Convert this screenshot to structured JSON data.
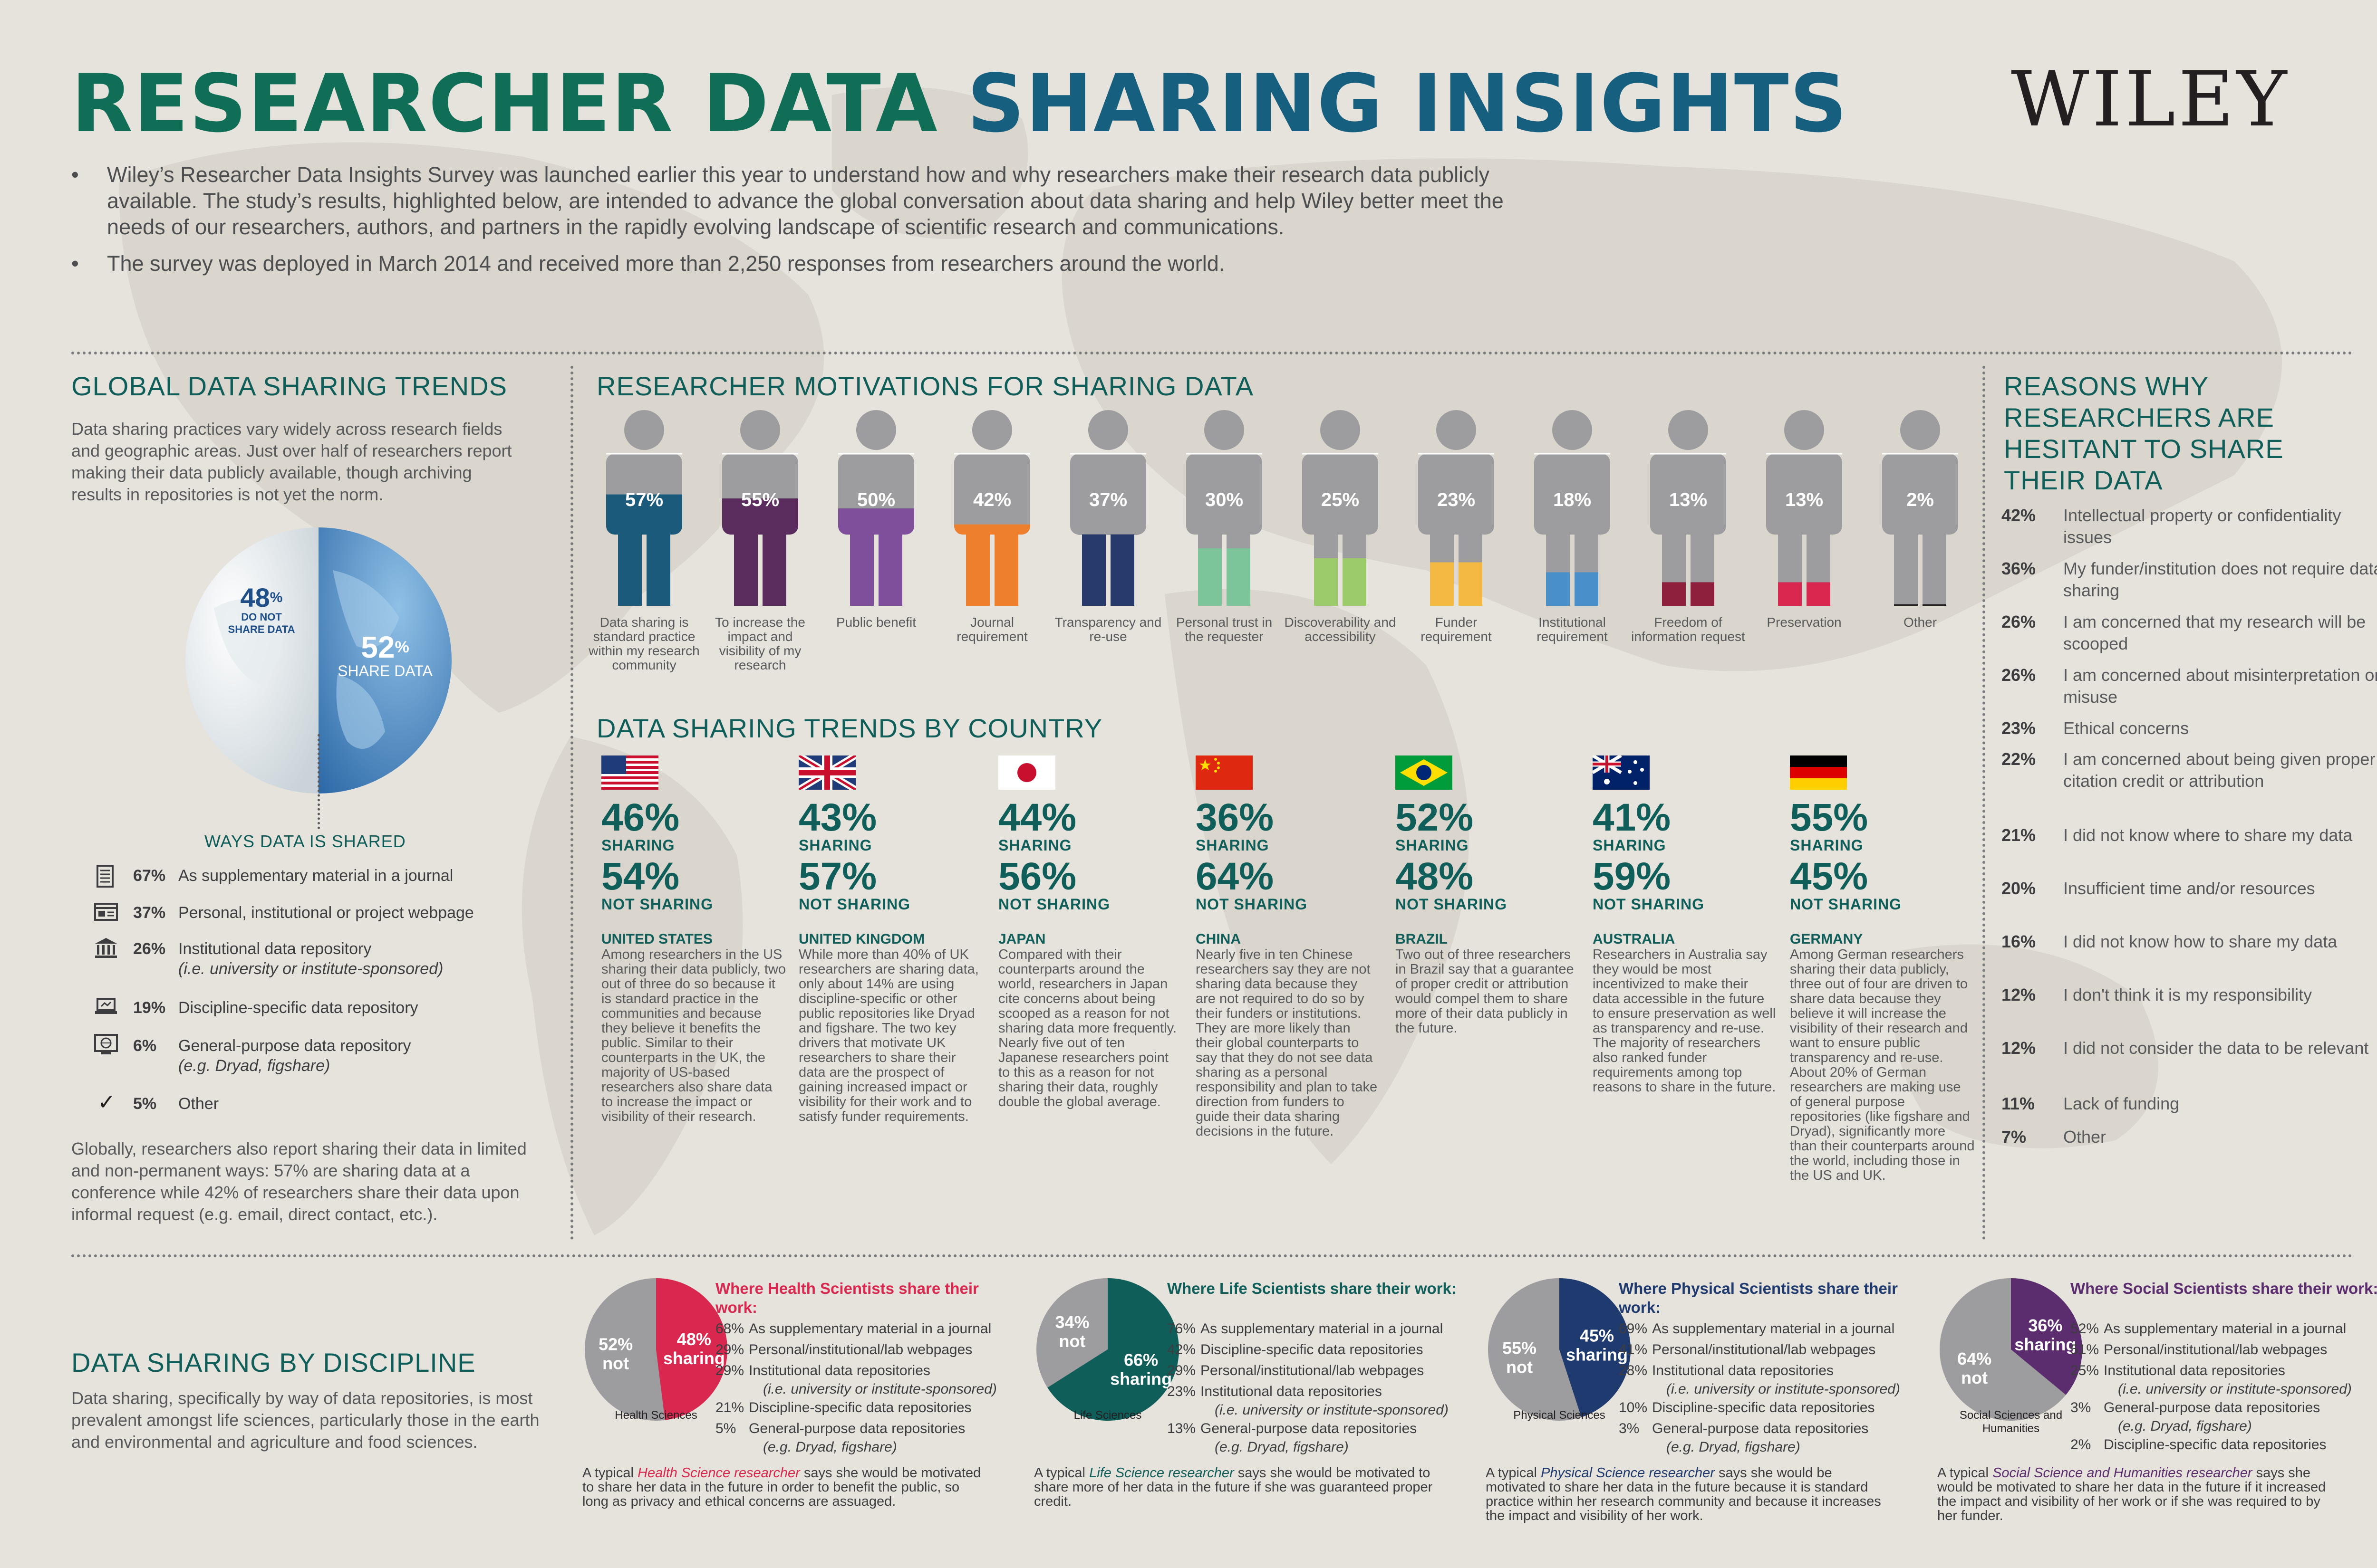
{
  "header": {
    "title_part1": "RESEARCHER DATA ",
    "title_part2": "SHARING INSIGHTS",
    "brand": "WILEY",
    "bullets": [
      "Wiley’s Researcher Data Insights Survey was launched earlier this year to understand how and why researchers make their research data publicly available. The study’s results, highlighted below, are intended to advance the global conversation about data sharing and help Wiley better meet the needs of our researchers, authors, and partners in the rapidly evolving landscape of scientific research and communications.",
      "The survey was deployed in March 2014 and received more than 2,250 responses from researchers around the world."
    ],
    "bullet_mark": "•"
  },
  "global": {
    "heading": "GLOBAL DATA SHARING TRENDS",
    "intro": "Data sharing practices vary widely across research fields and geographic areas. Just over half of researchers report making their data publicly available, though archiving results in repositories is not yet the norm.",
    "do_not_pct": "48",
    "do_not_label1": "DO NOT",
    "do_not_label2": "SHARE DATA",
    "share_pct": "52",
    "share_label": "SHARE DATA",
    "pct_sign": "%",
    "ways_heading": "WAYS DATA IS SHARED",
    "ways": [
      {
        "pct": "67%",
        "text": "As supplementary material in a journal",
        "sub": "",
        "icon": "journal-icon"
      },
      {
        "pct": "37%",
        "text": "Personal, institutional or project webpage",
        "sub": "",
        "icon": "webpage-icon"
      },
      {
        "pct": "26%",
        "text": "Institutional data repository",
        "sub": "(i.e. university or institute-sponsored)",
        "icon": "institution-icon"
      },
      {
        "pct": "19%",
        "text": "Discipline-specific data repository",
        "sub": "",
        "icon": "laptop-icon"
      },
      {
        "pct": "6%",
        "text": "General-purpose data repository",
        "sub": "(e.g. Dryad, figshare)",
        "icon": "globe-screen-icon"
      },
      {
        "pct": "5%",
        "text": "Other",
        "sub": "",
        "icon": "check-icon"
      }
    ],
    "footer": "Globally, researchers also report sharing their data in limited and non-permanent ways: 57% are sharing data at a conference while 42% of researchers share their data upon informal request (e.g. email, direct contact, etc.)."
  },
  "motivations": {
    "heading": "RESEARCHER MOTIVATIONS FOR SHARING DATA",
    "items": [
      {
        "pct": "57%",
        "label": "Data sharing is standard practice within my research community",
        "color": "#1b5a7a"
      },
      {
        "pct": "55%",
        "label": "To increase the impact and visibility of my research",
        "color": "#5b2d5e"
      },
      {
        "pct": "50%",
        "label": "Public benefit",
        "color": "#7f4f9c"
      },
      {
        "pct": "42%",
        "label": "Journal requirement",
        "color": "#ee7f2d"
      },
      {
        "pct": "37%",
        "label": "Transparency and re-use",
        "color": "#283a6b"
      },
      {
        "pct": "30%",
        "label": "Personal trust in the requester",
        "color": "#7cc49a"
      },
      {
        "pct": "25%",
        "label": "Discoverability and accessibility",
        "color": "#9ccc6a"
      },
      {
        "pct": "23%",
        "label": "Funder requirement",
        "color": "#f4b942"
      },
      {
        "pct": "18%",
        "label": "Institutional requirement",
        "color": "#4a90c8"
      },
      {
        "pct": "13%",
        "label": "Freedom of information request",
        "color": "#8e1f3d"
      },
      {
        "pct": "13%",
        "label": "Preservation",
        "color": "#d8284f"
      },
      {
        "pct": "2%",
        "label": "Other",
        "color": "#231f20"
      }
    ]
  },
  "countries": {
    "heading": "DATA SHARING TRENDS BY COUNTRY",
    "sharing_label": "SHARING",
    "not_sharing_label": "NOT SHARING",
    "items": [
      {
        "share": "46%",
        "not": "54%",
        "name": "UNITED STATES",
        "flag": "us-flag-icon",
        "text": "Among researchers in the US sharing their data publicly, two out of three do so because it is standard practice in the communities and because they believe it benefits the public. Similar to their counterparts in the UK, the majority of US-based researchers also share data to increase the impact or visibility of their research."
      },
      {
        "share": "43%",
        "not": "57%",
        "name": "UNITED KINGDOM",
        "flag": "uk-flag-icon",
        "text": "While more than 40% of UK researchers are sharing data, only about 14% are using discipline-specific or other public repositories like Dryad and figshare. The two key drivers that motivate UK researchers to share their data are the prospect of gaining increased impact or visibility for their work and to satisfy funder requirements."
      },
      {
        "share": "44%",
        "not": "56%",
        "name": "JAPAN",
        "flag": "japan-flag-icon",
        "text": "Compared with their counterparts around the world, researchers in Japan cite concerns about being scooped as a reason for not sharing data more frequently. Nearly five out of ten Japanese researchers point to this as a reason for not sharing their data, roughly double the global average."
      },
      {
        "share": "36%",
        "not": "64%",
        "name": "CHINA",
        "flag": "china-flag-icon",
        "text": "Nearly five in ten Chinese researchers say they are not sharing data because they are not required to do so by their funders or institutions. They are more likely than their global counterparts to say that they do not see data sharing as a personal responsibility and plan to take direction from funders to guide their data sharing decisions in the future."
      },
      {
        "share": "52%",
        "not": "48%",
        "name": "BRAZIL",
        "flag": "brazil-flag-icon",
        "text": "Two out of three researchers in Brazil say that a guarantee of proper credit or attribution would compel them to share more of their data publicly in the future."
      },
      {
        "share": "41%",
        "not": "59%",
        "name": "AUSTRALIA",
        "flag": "australia-flag-icon",
        "text": "Researchers in Australia say they would be most incentivized to make their data accessible in the future to ensure preservation as well as transparency and re-use. The majority of researchers also ranked funder requirements among top reasons to share in the future."
      },
      {
        "share": "55%",
        "not": "45%",
        "name": "GERMANY",
        "flag": "germany-flag-icon",
        "text": "Among German researchers sharing their data publicly, three out of four are driven to share data because they believe it will increase the visibility of their research and want to ensure public transparency and re-use. About 20% of German researchers are making use of general purpose repositories (like figshare and Dryad), significantly more than their counterparts around the world, including those in the US and UK."
      }
    ]
  },
  "reasons": {
    "heading": "REASONS WHY RESEARCHERS ARE HESITANT TO SHARE THEIR DATA",
    "items": [
      {
        "pct": "42%",
        "text": "Intellectual property or confidentiality issues"
      },
      {
        "pct": "36%",
        "text": "My funder/institution does not require data sharing"
      },
      {
        "pct": "26%",
        "text": "I am concerned that my research will be scooped"
      },
      {
        "pct": "26%",
        "text": "I am concerned about misinterpretation or misuse"
      },
      {
        "pct": "23%",
        "text": "Ethical concerns"
      },
      {
        "pct": "22%",
        "text": "I am concerned about being given proper citation credit or attribution"
      },
      {
        "pct": "21%",
        "text": "I did not know where to share my data"
      },
      {
        "pct": "20%",
        "text": "Insufficient time and/or resources"
      },
      {
        "pct": "16%",
        "text": "I did not know how to share my data"
      },
      {
        "pct": "12%",
        "text": "I don't think it is my responsibility"
      },
      {
        "pct": "12%",
        "text": "I did not consider the data to be relevant"
      },
      {
        "pct": "11%",
        "text": "Lack of funding"
      },
      {
        "pct": "7%",
        "text": "Other"
      }
    ]
  },
  "discipline": {
    "heading": "DATA SHARING BY DISCIPLINE",
    "intro": "Data sharing, specifically by way of data repositories, is most prevalent amongst life sciences, particularly those in the earth and environmental and agriculture and food sciences.",
    "items": [
      {
        "name": "Health Sciences",
        "share": "48%",
        "not": "52%",
        "share_word": "sharing",
        "not_word": "not",
        "color": "#d8284f",
        "title": "Where Health Scientists share their work:",
        "list": [
          {
            "pct": "68%",
            "text": "As supplementary material in a journal",
            "sub": ""
          },
          {
            "pct": "29%",
            "text": "Personal/institutional/lab webpages",
            "sub": ""
          },
          {
            "pct": "29%",
            "text": "Institutional data repositories",
            "sub": "(i.e. university or institute-sponsored)"
          },
          {
            "pct": "21%",
            "text": "Discipline-specific data repositories",
            "sub": ""
          },
          {
            "pct": "5%",
            "text": "General-purpose data repositories",
            "sub": "(e.g. Dryad, figshare)"
          }
        ],
        "note_pre": "A typical ",
        "note_em": "Health Science researcher",
        "note_post": " says she would be motivated to share her data in the future in order to benefit the public, so long as privacy and ethical concerns are assuaged."
      },
      {
        "name": "Life Sciences",
        "share": "66%",
        "not": "34%",
        "share_word": "sharing",
        "not_word": "not",
        "color": "#0f5e5a",
        "title": "Where Life Scientists share their work:",
        "list": [
          {
            "pct": "76%",
            "text": "As supplementary material in a journal",
            "sub": ""
          },
          {
            "pct": "42%",
            "text": "Discipline-specific data repositories",
            "sub": ""
          },
          {
            "pct": "29%",
            "text": "Personal/institutional/lab webpages",
            "sub": ""
          },
          {
            "pct": "23%",
            "text": "Institutional data repositories",
            "sub": "(i.e. university or institute-sponsored)"
          },
          {
            "pct": "13%",
            "text": "General-purpose data repositories",
            "sub": "(e.g. Dryad, figshare)"
          }
        ],
        "note_pre": "A typical ",
        "note_em": "Life Science researcher",
        "note_post": " says she would be motivated to share more of her data in the future if she was guaranteed proper credit."
      },
      {
        "name": "Physical Sciences",
        "share": "45%",
        "not": "55%",
        "share_word": "sharing",
        "not_word": "not",
        "color": "#1e3a6e",
        "title": "Where Physical Scientists share their work:",
        "list": [
          {
            "pct": "69%",
            "text": "As supplementary material in a journal",
            "sub": ""
          },
          {
            "pct": "41%",
            "text": "Personal/institutional/lab webpages",
            "sub": ""
          },
          {
            "pct": "28%",
            "text": "Institutional data repositories",
            "sub": "(i.e. university or institute-sponsored)"
          },
          {
            "pct": "10%",
            "text": "Discipline-specific data repositories",
            "sub": ""
          },
          {
            "pct": "3%",
            "text": "General-purpose data repositories",
            "sub": "(e.g. Dryad, figshare)"
          }
        ],
        "note_pre": "A typical ",
        "note_em": "Physical Science researcher",
        "note_post": " says she would be motivated to share her data in the future because it is standard practice within her research community and because it increases the impact and visibility of her work."
      },
      {
        "name": "Social Sciences and Humanities",
        "share": "36%",
        "not": "64%",
        "share_word": "sharing",
        "not_word": "not",
        "color": "#5b2d6e",
        "title": "Where Social Scientists share their work:",
        "list": [
          {
            "pct": "52%",
            "text": "As supplementary material in a journal",
            "sub": ""
          },
          {
            "pct": "51%",
            "text": "Personal/institutional/lab webpages",
            "sub": ""
          },
          {
            "pct": "25%",
            "text": "Institutional data repositories",
            "sub": "(i.e. university or institute-sponsored)"
          },
          {
            "pct": "3%",
            "text": "General-purpose data repositories",
            "sub": "(e.g. Dryad, figshare)"
          },
          {
            "pct": "2%",
            "text": "Discipline-specific data repositories",
            "sub": ""
          }
        ],
        "note_pre": "A typical ",
        "note_em": "Social Science and Humanities researcher",
        "note_post": " says she would be motivated to share her data in the future if it increased the impact and visibility of her work or if she was required to by her funder."
      }
    ]
  },
  "chart_data": [
    {
      "type": "pie",
      "title": "",
      "categories": [
        "DO NOT SHARE DATA",
        "SHARE DATA"
      ],
      "values": [
        48,
        52
      ]
    },
    {
      "type": "bar",
      "title": "RESEARCHER MOTIVATIONS FOR SHARING DATA",
      "categories": [
        "Data sharing is standard practice within my research community",
        "To increase the impact and visibility of my research",
        "Public benefit",
        "Journal requirement",
        "Transparency and re-use",
        "Personal trust in the requester",
        "Discoverability and accessibility",
        "Funder requirement",
        "Institutional requirement",
        "Freedom of information request",
        "Preservation",
        "Other"
      ],
      "values": [
        57,
        55,
        50,
        42,
        37,
        30,
        25,
        23,
        18,
        13,
        13,
        2
      ],
      "ylim": [
        0,
        100
      ]
    },
    {
      "type": "table",
      "title": "DATA SHARING TRENDS BY COUNTRY",
      "categories": [
        "UNITED STATES",
        "UNITED KINGDOM",
        "JAPAN",
        "CHINA",
        "BRAZIL",
        "AUSTRALIA",
        "GERMANY"
      ],
      "series": [
        {
          "name": "SHARING",
          "values": [
            46,
            43,
            44,
            36,
            52,
            41,
            55
          ]
        },
        {
          "name": "NOT SHARING",
          "values": [
            54,
            57,
            56,
            64,
            48,
            59,
            45
          ]
        }
      ]
    },
    {
      "type": "pie",
      "title": "Health Sciences",
      "categories": [
        "not",
        "sharing"
      ],
      "values": [
        52,
        48
      ]
    },
    {
      "type": "pie",
      "title": "Life Sciences",
      "categories": [
        "not",
        "sharing"
      ],
      "values": [
        34,
        66
      ]
    },
    {
      "type": "pie",
      "title": "Physical Sciences",
      "categories": [
        "not",
        "sharing"
      ],
      "values": [
        55,
        45
      ]
    },
    {
      "type": "pie",
      "title": "Social Sciences and Humanities",
      "categories": [
        "not",
        "sharing"
      ],
      "values": [
        64,
        36
      ]
    }
  ]
}
